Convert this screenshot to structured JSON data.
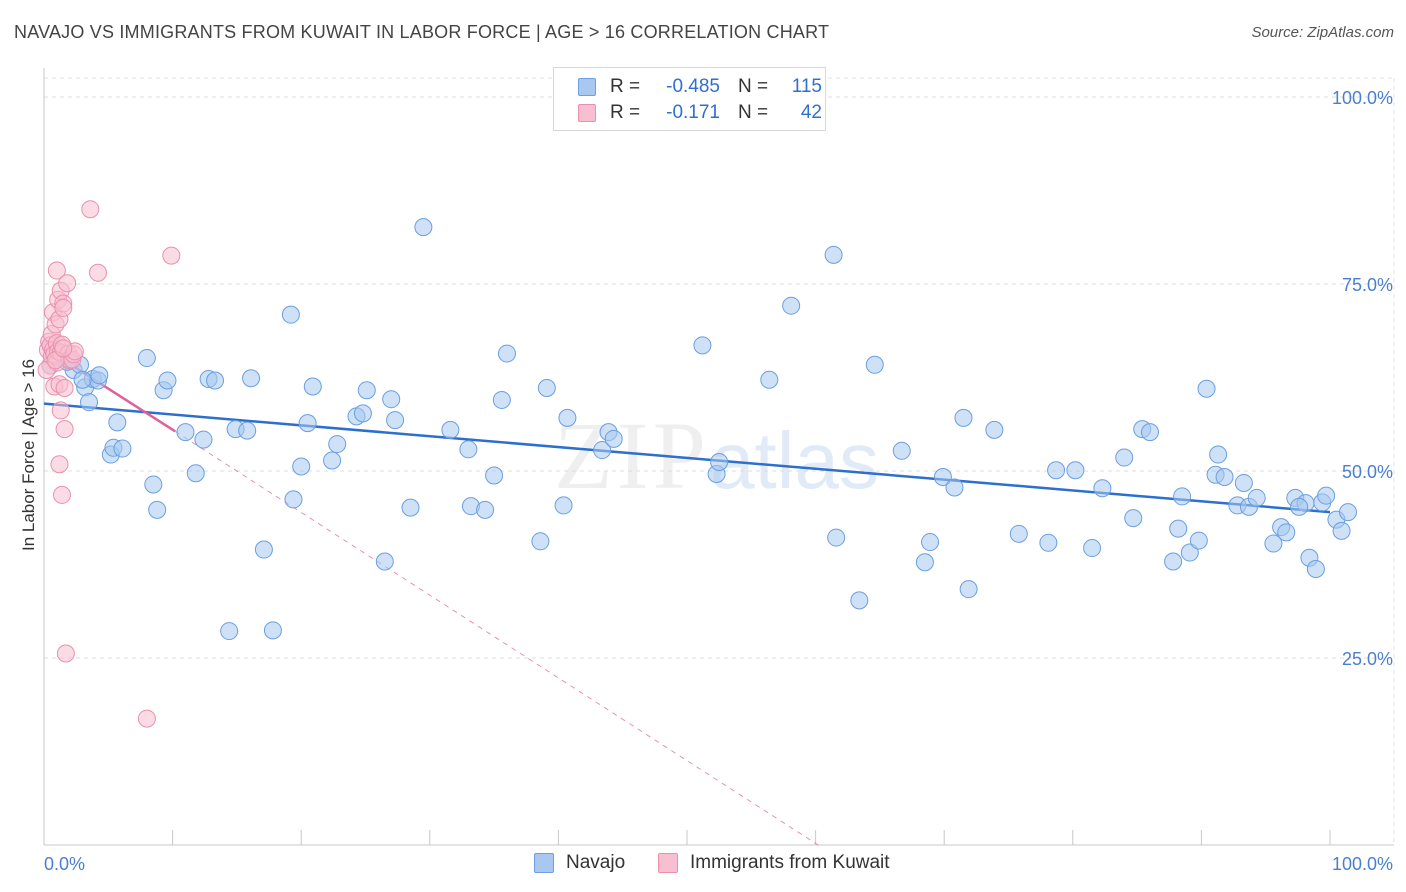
{
  "title": "NAVAJO VS IMMIGRANTS FROM KUWAIT IN LABOR FORCE | AGE > 16 CORRELATION CHART",
  "source": "Source: ZipAtlas.com",
  "watermark": {
    "zip": "ZIP",
    "atlas": "atlas"
  },
  "legend": {
    "rows": [
      {
        "r_label": "R =",
        "r_value": "-0.485",
        "n_label": "N =",
        "n_value": "115",
        "color": "#a8c8f0",
        "stroke": "#6a9fe0"
      },
      {
        "r_label": "R =",
        "r_value": "-0.171",
        "n_label": "N =",
        "n_value": "42",
        "color": "#f7bfd0",
        "stroke": "#ea8fae"
      }
    ]
  },
  "bottom_legend": [
    {
      "name": "Navajo",
      "color": "#a8c8f0",
      "stroke": "#6a9fe0"
    },
    {
      "name": "Immigrants from Kuwait",
      "color": "#f7bfd0",
      "stroke": "#ea8fae"
    }
  ],
  "chart_data": {
    "type": "scatter",
    "ylabel": "In Labor Force | Age > 16",
    "xlim": [
      0,
      100
    ],
    "ylim": [
      0,
      100
    ],
    "y_ticks": [
      {
        "value": 25,
        "label": "25.0%"
      },
      {
        "value": 50,
        "label": "50.0%"
      },
      {
        "value": 75,
        "label": "75.0%"
      },
      {
        "value": 100,
        "label": "100.0%"
      }
    ],
    "x_tick_labels": [
      {
        "value": 0,
        "label": "0.0%"
      },
      {
        "value": 100,
        "label": "100.0%"
      }
    ],
    "x_minor_ticks": [
      10,
      20,
      30,
      40,
      50,
      60,
      70,
      80,
      90,
      100
    ],
    "grid": true,
    "series": [
      {
        "name": "Navajo",
        "color": "#a8c8f0",
        "stroke": "#6a9fe0",
        "trend": {
          "x": [
            0,
            100
          ],
          "y": [
            59.0,
            44.5
          ],
          "color": "#2d6fcc"
        },
        "points": [
          [
            1.6,
            65.5
          ],
          [
            2.3,
            63.5
          ],
          [
            2.8,
            64.2
          ],
          [
            3.2,
            61.2
          ],
          [
            3.5,
            59.2
          ],
          [
            3.8,
            62.3
          ],
          [
            4.2,
            62.1
          ],
          [
            4.3,
            62.8
          ],
          [
            5.2,
            52.2
          ],
          [
            5.4,
            53.1
          ],
          [
            5.7,
            56.5
          ],
          [
            6.1,
            53.0
          ],
          [
            8.0,
            65.1
          ],
          [
            8.5,
            48.2
          ],
          [
            8.8,
            44.8
          ],
          [
            9.3,
            60.8
          ],
          [
            9.6,
            62.1
          ],
          [
            11.0,
            55.2
          ],
          [
            11.8,
            49.7
          ],
          [
            12.4,
            54.2
          ],
          [
            12.8,
            62.3
          ],
          [
            13.3,
            62.1
          ],
          [
            14.4,
            28.6
          ],
          [
            14.9,
            55.6
          ],
          [
            15.8,
            55.4
          ],
          [
            16.1,
            62.4
          ],
          [
            17.1,
            39.5
          ],
          [
            17.8,
            28.7
          ],
          [
            19.2,
            70.9
          ],
          [
            19.4,
            46.2
          ],
          [
            20.0,
            50.6
          ],
          [
            20.5,
            56.4
          ],
          [
            20.9,
            61.3
          ],
          [
            22.4,
            51.4
          ],
          [
            22.8,
            53.6
          ],
          [
            24.3,
            57.3
          ],
          [
            24.8,
            57.7
          ],
          [
            25.1,
            60.8
          ],
          [
            26.5,
            37.9
          ],
          [
            27.0,
            59.6
          ],
          [
            27.3,
            56.8
          ],
          [
            28.5,
            45.1
          ],
          [
            29.5,
            82.6
          ],
          [
            31.6,
            55.5
          ],
          [
            33.0,
            52.9
          ],
          [
            33.2,
            45.3
          ],
          [
            34.3,
            44.8
          ],
          [
            35.0,
            49.4
          ],
          [
            35.6,
            59.5
          ],
          [
            36.0,
            65.7
          ],
          [
            38.6,
            40.6
          ],
          [
            39.1,
            61.1
          ],
          [
            40.4,
            45.4
          ],
          [
            40.7,
            57.1
          ],
          [
            43.4,
            52.8
          ],
          [
            43.9,
            55.2
          ],
          [
            44.3,
            54.3
          ],
          [
            51.2,
            66.8
          ],
          [
            52.3,
            49.6
          ],
          [
            52.5,
            51.2
          ],
          [
            56.4,
            62.2
          ],
          [
            58.1,
            72.1
          ],
          [
            61.4,
            78.9
          ],
          [
            61.6,
            41.1
          ],
          [
            63.4,
            32.7
          ],
          [
            64.6,
            64.2
          ],
          [
            66.7,
            52.7
          ],
          [
            68.5,
            37.8
          ],
          [
            68.9,
            40.5
          ],
          [
            69.9,
            49.2
          ],
          [
            70.8,
            47.8
          ],
          [
            71.5,
            57.1
          ],
          [
            71.9,
            34.2
          ],
          [
            73.9,
            55.5
          ],
          [
            75.8,
            41.6
          ],
          [
            78.1,
            40.4
          ],
          [
            78.7,
            50.1
          ],
          [
            80.2,
            50.1
          ],
          [
            81.5,
            39.7
          ],
          [
            82.3,
            47.7
          ],
          [
            84.0,
            51.8
          ],
          [
            84.7,
            43.7
          ],
          [
            85.4,
            55.6
          ],
          [
            86.0,
            55.2
          ],
          [
            87.8,
            37.9
          ],
          [
            88.2,
            42.3
          ],
          [
            88.5,
            46.6
          ],
          [
            89.1,
            39.1
          ],
          [
            89.8,
            40.7
          ],
          [
            90.4,
            61.0
          ],
          [
            91.1,
            49.5
          ],
          [
            91.3,
            52.2
          ],
          [
            91.8,
            49.2
          ],
          [
            92.8,
            45.4
          ],
          [
            93.3,
            48.4
          ],
          [
            93.7,
            45.2
          ],
          [
            94.3,
            46.4
          ],
          [
            95.6,
            40.3
          ],
          [
            96.2,
            42.5
          ],
          [
            96.6,
            41.8
          ],
          [
            97.3,
            46.4
          ],
          [
            98.1,
            45.7
          ],
          [
            98.4,
            38.4
          ],
          [
            98.9,
            36.9
          ],
          [
            99.4,
            45.8
          ],
          [
            99.7,
            46.7
          ],
          [
            100.5,
            43.5
          ],
          [
            100.9,
            42.0
          ],
          [
            101.4,
            44.5
          ],
          [
            97.6,
            45.2
          ],
          [
            1.8,
            64.6
          ],
          [
            2.0,
            64.9
          ],
          [
            3.0,
            62.2
          ],
          [
            0.5,
            64.1
          ],
          [
            1.2,
            65.2
          ]
        ]
      },
      {
        "name": "Immigrants from Kuwait",
        "color": "#f7bfd0",
        "stroke": "#ea8fae",
        "trend": {
          "x": [
            0,
            10.2
          ],
          "y": [
            66.5,
            55.3
          ],
          "color": "#e0609a",
          "dash_to": [
            60.2,
            0
          ]
        },
        "points": [
          [
            0.3,
            66.2
          ],
          [
            0.4,
            67.3
          ],
          [
            0.5,
            64.1
          ],
          [
            0.5,
            66.8
          ],
          [
            0.6,
            65.3
          ],
          [
            0.6,
            68.3
          ],
          [
            0.7,
            71.2
          ],
          [
            0.7,
            66.2
          ],
          [
            0.8,
            61.3
          ],
          [
            0.8,
            65.6
          ],
          [
            0.9,
            69.6
          ],
          [
            1.0,
            67.1
          ],
          [
            1.0,
            64.5
          ],
          [
            1.0,
            76.8
          ],
          [
            1.1,
            72.9
          ],
          [
            1.1,
            66.0
          ],
          [
            1.2,
            70.3
          ],
          [
            1.2,
            61.6
          ],
          [
            1.2,
            50.9
          ],
          [
            1.3,
            58.1
          ],
          [
            1.3,
            74.1
          ],
          [
            1.3,
            65.8
          ],
          [
            1.4,
            46.8
          ],
          [
            1.4,
            66.9
          ],
          [
            1.5,
            72.4
          ],
          [
            1.5,
            71.8
          ],
          [
            1.6,
            55.6
          ],
          [
            1.6,
            61.1
          ],
          [
            1.7,
            25.6
          ],
          [
            1.8,
            75.1
          ],
          [
            1.9,
            65.7
          ],
          [
            2.0,
            64.8
          ],
          [
            2.2,
            64.9
          ],
          [
            2.3,
            65.6
          ],
          [
            2.4,
            66.0
          ],
          [
            3.6,
            85.0
          ],
          [
            4.2,
            76.5
          ],
          [
            8.0,
            16.9
          ],
          [
            9.9,
            78.8
          ],
          [
            0.2,
            63.5
          ],
          [
            0.9,
            64.8
          ],
          [
            1.5,
            66.4
          ]
        ]
      }
    ]
  }
}
